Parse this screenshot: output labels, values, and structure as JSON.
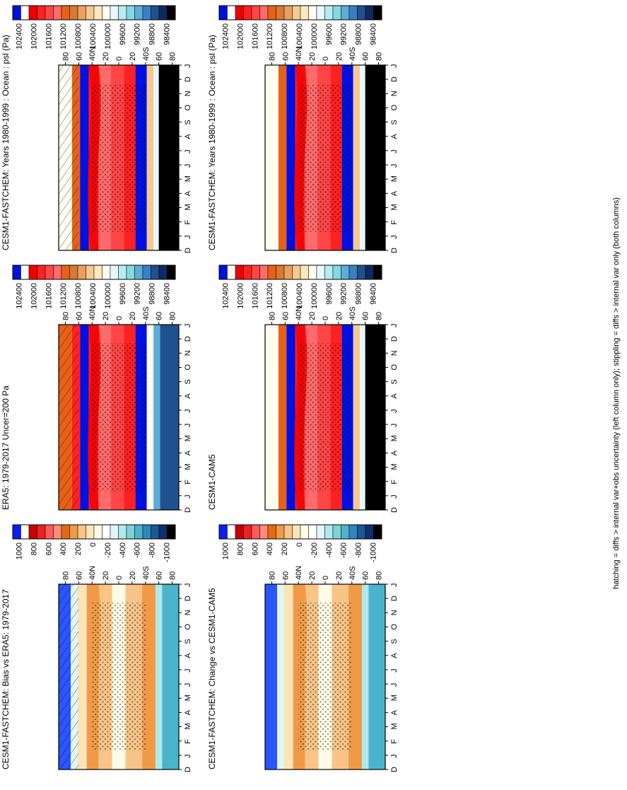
{
  "footer": "hatching = diffs > internal var+obs uncertainty (left column only); stippling = diffs > internal var only (both columns)",
  "palettes": {
    "abs": [
      "#0010e0",
      "#1035ff",
      "#ffffff",
      "#ef0000",
      "#ff2020",
      "#ff4545",
      "#ff6a6a",
      "#e86018",
      "#d87a30",
      "#e9a060",
      "#f7c890",
      "#fde6c0",
      "#fffdf0",
      "#e8f8ff",
      "#b4eef0",
      "#8ad6e0",
      "#5aaed8",
      "#3a80c0",
      "#205090",
      "#102a60",
      "#000000"
    ],
    "diff": [
      "#0a1ef0",
      "#2a55ff",
      "#ffffff",
      "#c80000",
      "#ee2020",
      "#ff5a5a",
      "#ff8a7a",
      "#e46a12",
      "#f09a48",
      "#f8c488",
      "#fde4b8",
      "#fffbe6",
      "#ffffff",
      "#dff7f7",
      "#b0eaea",
      "#7fd2d6",
      "#4ab4cc",
      "#2e86bd",
      "#1c5896",
      "#0f3068",
      "#000000"
    ]
  },
  "panels": [
    {
      "title": "CESM1-FASTCHEM: Years 1980-1999 : Ocean : psl (Pa)",
      "colorbar_labels": [
        "102400",
        "102000",
        "101600",
        "101200",
        "100800",
        "100400",
        "100000",
        "99600",
        "99200",
        "98800",
        "98400"
      ],
      "palette": "abs"
    },
    {
      "title": "CESM1-FASTCHEM: Years 1980-1999 : Ocean : psl (Pa)",
      "colorbar_labels": [
        "102400",
        "102000",
        "101600",
        "101200",
        "100800",
        "100400",
        "100000",
        "99600",
        "99200",
        "98800",
        "98400"
      ],
      "palette": "abs"
    },
    {
      "title": "ERA5: 1979-2017 Uncer=200 Pa",
      "colorbar_labels": [
        "102400",
        "102000",
        "101600",
        "101200",
        "100800",
        "100400",
        "100000",
        "99600",
        "99200",
        "98800",
        "98400"
      ],
      "palette": "abs"
    },
    {
      "title": "CESM1-CAM5",
      "colorbar_labels": [
        "102400",
        "102000",
        "101600",
        "101200",
        "100800",
        "100400",
        "100000",
        "99600",
        "99200",
        "98800",
        "98400"
      ],
      "palette": "abs"
    },
    {
      "title": "CESM1-FASTCHEM: Bias vs ERA5: 1979-2017",
      "colorbar_labels": [
        "1000",
        "800",
        "600",
        "400",
        "200",
        "0",
        "-200",
        "-400",
        "-600",
        "-800",
        "-1000"
      ],
      "palette": "diff"
    },
    {
      "title": "CESM1-FASTCHEM: Change vs CESM1-CAM5",
      "colorbar_labels": [
        "1000",
        "800",
        "600",
        "400",
        "200",
        "0",
        "-200",
        "-400",
        "-600",
        "-800",
        "-1000"
      ],
      "palette": "diff"
    }
  ],
  "axes": {
    "month_labels": [
      "D",
      "J",
      "F",
      "M",
      "A",
      "M",
      "J",
      "J",
      "A",
      "S",
      "O",
      "N",
      "D",
      "J"
    ],
    "lat_labels": [
      "80",
      "60",
      "40N",
      "20",
      "0",
      "20",
      "40S",
      "60",
      "80"
    ]
  }
}
